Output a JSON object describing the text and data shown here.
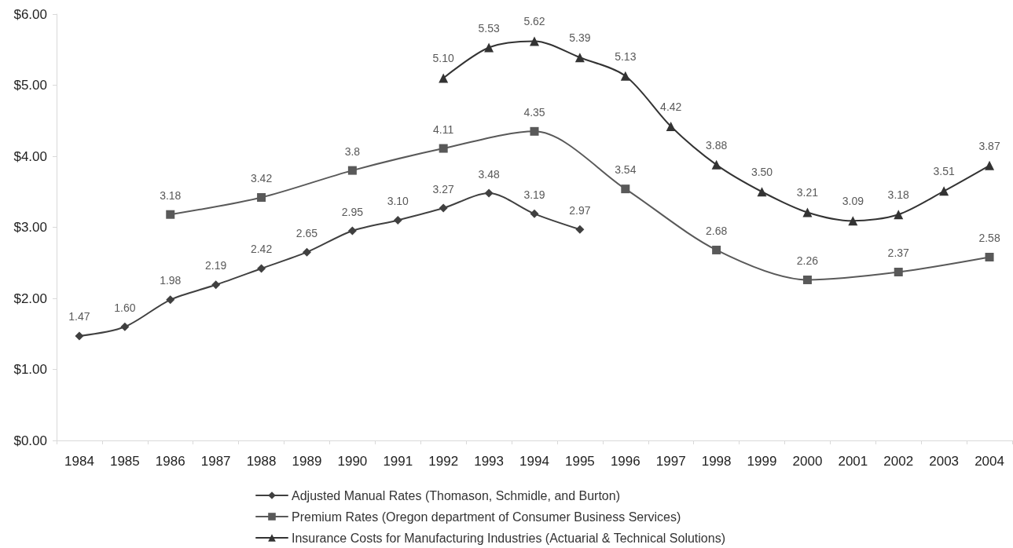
{
  "chart_data": {
    "type": "line",
    "categories": [
      "1984",
      "1985",
      "1986",
      "1987",
      "1988",
      "1989",
      "1990",
      "1991",
      "1992",
      "1993",
      "1994",
      "1995",
      "1996",
      "1997",
      "1998",
      "1999",
      "2000",
      "2001",
      "2002",
      "2003",
      "2004"
    ],
    "ylim": [
      0,
      6
    ],
    "yticks": [
      {
        "value": 0,
        "label": "$0.00"
      },
      {
        "value": 1,
        "label": "$1.00"
      },
      {
        "value": 2,
        "label": "$2.00"
      },
      {
        "value": 3,
        "label": "$3.00"
      },
      {
        "value": 4,
        "label": "$4.00"
      },
      {
        "value": 5,
        "label": "$5.00"
      },
      {
        "value": 6,
        "label": "$6.00"
      }
    ],
    "legend": "bottom",
    "series": [
      {
        "name": "Adjusted Manual Rates (Thomason, Schmidle, and Burton)",
        "color": "#404040",
        "marker": "diamond",
        "values": [
          1.47,
          1.6,
          1.98,
          2.19,
          2.42,
          2.65,
          2.95,
          3.1,
          3.27,
          3.48,
          3.19,
          2.97,
          null,
          null,
          null,
          null,
          null,
          null,
          null,
          null,
          null
        ],
        "value_labels": [
          "1.47",
          "1.60",
          "1.98",
          "2.19",
          "2.42",
          "2.65",
          "2.95",
          "3.10",
          "3.27",
          "3.48",
          "3.19",
          "2.97",
          null,
          null,
          null,
          null,
          null,
          null,
          null,
          null,
          null
        ]
      },
      {
        "name": "Premium Rates (Oregon department of Consumer Business Services)",
        "color": "#595959",
        "marker": "square",
        "values": [
          null,
          null,
          3.18,
          null,
          3.42,
          null,
          3.8,
          null,
          4.11,
          null,
          4.35,
          null,
          3.54,
          null,
          2.68,
          null,
          2.26,
          null,
          2.37,
          null,
          2.58
        ],
        "value_labels": [
          null,
          null,
          "3.18",
          null,
          "3.42",
          null,
          "3.8",
          null,
          "4.11",
          null,
          "4.35",
          null,
          "3.54",
          null,
          "2.68",
          null,
          "2.26",
          null,
          "2.37",
          null,
          "2.58"
        ]
      },
      {
        "name": "Insurance Costs for Manufacturing Industries (Actuarial & Technical Solutions)",
        "color": "#333333",
        "marker": "triangle",
        "values": [
          null,
          null,
          null,
          null,
          null,
          null,
          null,
          null,
          5.1,
          5.53,
          5.62,
          5.39,
          5.13,
          4.42,
          3.88,
          3.5,
          3.21,
          3.09,
          3.18,
          3.51,
          3.87
        ],
        "value_labels": [
          null,
          null,
          null,
          null,
          null,
          null,
          null,
          null,
          "5.10",
          "5.53",
          "5.62",
          "5.39",
          "5.13",
          "4.42",
          "3.88",
          "3.50",
          "3.21",
          "3.09",
          "3.18",
          "3.51",
          "3.87"
        ]
      }
    ]
  }
}
